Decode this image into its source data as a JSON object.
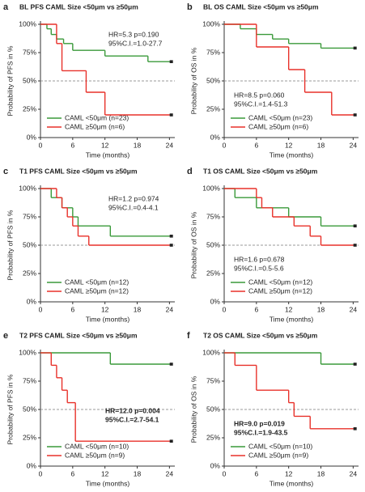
{
  "chart_data": [
    {
      "type": "step",
      "panel_label": "a",
      "title": "BL PFS CAML Size <50μm vs ≥50μm",
      "annotations": [
        "HR=5.3 p=0.190",
        "95%C.I.=1.0-27.7"
      ],
      "annotation_position": "upper right",
      "annotation_weight": "normal",
      "x_label": "Time (months)",
      "y_label": "Probability of PFS in %",
      "xlim": [
        0,
        25
      ],
      "ylim": [
        0,
        100
      ],
      "xticks": [
        0,
        6,
        12,
        18,
        24
      ],
      "yticks": [
        {
          "value": 0,
          "label": "0%"
        },
        {
          "value": 25,
          "label": "25%"
        },
        {
          "value": 50,
          "label": "50%"
        },
        {
          "value": 75,
          "label": "75%"
        },
        {
          "value": 100,
          "label": "100%"
        }
      ],
      "reference_line": 50,
      "legend": "lower left",
      "series": [
        {
          "name": "CAML <50μm (n=23)",
          "color": "#3a9a3a",
          "x": [
            0,
            1.2,
            2,
            3,
            4.3,
            6,
            12,
            20,
            24.5
          ],
          "values": [
            100,
            96,
            91,
            87,
            83,
            77,
            72,
            67,
            67
          ]
        },
        {
          "name": "CAML ≥50μm (n=6)",
          "color": "#e8312a",
          "x": [
            0,
            3,
            4,
            8.5,
            12,
            24.5
          ],
          "values": [
            100,
            83,
            59,
            40,
            20,
            20
          ]
        }
      ]
    },
    {
      "type": "step",
      "panel_label": "b",
      "title": "BL OS CAML Size <50μm vs ≥50μm",
      "annotations": [
        "HR=8.5 p=0.060",
        "95%C.I.=1.4-51.3"
      ],
      "annotation_position": "lower left",
      "annotation_weight": "normal",
      "x_label": "Time (months)",
      "y_label": "Probability of OS in %",
      "xlim": [
        0,
        25
      ],
      "ylim": [
        0,
        100
      ],
      "xticks": [
        0,
        6,
        12,
        18,
        24
      ],
      "yticks": [
        {
          "value": 0,
          "label": "0%"
        },
        {
          "value": 25,
          "label": "25%"
        },
        {
          "value": 50,
          "label": "50%"
        },
        {
          "value": 75,
          "label": "75%"
        },
        {
          "value": 100,
          "label": "100%"
        }
      ],
      "reference_line": 50,
      "legend": "lower left",
      "series": [
        {
          "name": "CAML <50μm (n=23)",
          "color": "#3a9a3a",
          "x": [
            0,
            3,
            6,
            9,
            12,
            18,
            24.5
          ],
          "values": [
            100,
            96,
            91,
            87,
            83,
            79,
            79
          ]
        },
        {
          "name": "CAML ≥50μm (n=6)",
          "color": "#e8312a",
          "x": [
            0,
            6,
            12,
            15,
            20,
            24.5
          ],
          "values": [
            100,
            80,
            60,
            40,
            20,
            20
          ]
        }
      ]
    },
    {
      "type": "step",
      "panel_label": "c",
      "title": "T1 PFS CAML Size <50μm vs ≥50μm",
      "annotations": [
        "HR=1.2 p=0.974",
        "95%C.I.=0.4-4.1"
      ],
      "annotation_position": "upper right",
      "annotation_weight": "normal",
      "x_label": "Time (months)",
      "y_label": "Probability of PFS in %",
      "xlim": [
        0,
        25
      ],
      "ylim": [
        0,
        100
      ],
      "xticks": [
        0,
        6,
        12,
        18,
        24
      ],
      "yticks": [
        {
          "value": 0,
          "label": "0%"
        },
        {
          "value": 25,
          "label": "25%"
        },
        {
          "value": 50,
          "label": "50%"
        },
        {
          "value": 75,
          "label": "75%"
        },
        {
          "value": 100,
          "label": "100%"
        }
      ],
      "reference_line": 50,
      "legend": "lower left",
      "series": [
        {
          "name": "CAML <50μm (n=12)",
          "color": "#3a9a3a",
          "x": [
            0,
            2,
            4,
            6,
            7,
            13,
            24.5
          ],
          "values": [
            100,
            92,
            83,
            75,
            67,
            58,
            58
          ]
        },
        {
          "name": "CAML ≥50μm (n=12)",
          "color": "#e8312a",
          "x": [
            0,
            3,
            4,
            5,
            6,
            7,
            9,
            24.5
          ],
          "values": [
            100,
            92,
            83,
            75,
            67,
            58,
            50,
            50
          ]
        }
      ]
    },
    {
      "type": "step",
      "panel_label": "d",
      "title": "T1 OS CAML Size <50μm vs ≥50μm",
      "annotations": [
        "HR=1.6 p=0.678",
        "95%C.I.=0.5-5.6"
      ],
      "annotation_position": "lower left",
      "annotation_weight": "normal",
      "x_label": "Time (months)",
      "y_label": "Probability of OS in %",
      "xlim": [
        0,
        25
      ],
      "ylim": [
        0,
        100
      ],
      "xticks": [
        0,
        6,
        12,
        18,
        24
      ],
      "yticks": [
        {
          "value": 0,
          "label": "0%"
        },
        {
          "value": 25,
          "label": "25%"
        },
        {
          "value": 50,
          "label": "50%"
        },
        {
          "value": 75,
          "label": "75%"
        },
        {
          "value": 100,
          "label": "100%"
        }
      ],
      "reference_line": 50,
      "legend": "lower left",
      "series": [
        {
          "name": "CAML <50μm (n=12)",
          "color": "#3a9a3a",
          "x": [
            0,
            2,
            6,
            12,
            18,
            24.5
          ],
          "values": [
            100,
            92,
            83,
            75,
            67,
            67
          ]
        },
        {
          "name": "CAML ≥50μm (n=12)",
          "color": "#e8312a",
          "x": [
            0,
            6,
            7,
            9,
            13,
            16,
            18,
            24.5
          ],
          "values": [
            100,
            92,
            83,
            75,
            67,
            58,
            50,
            50
          ]
        }
      ]
    },
    {
      "type": "step",
      "panel_label": "e",
      "title": "T2 PFS CAML Size <50μm vs ≥50μm",
      "annotations": [
        "HR=12.0 p=0.004",
        "95%C.I.=2.7-54.1"
      ],
      "annotation_position": "middle right",
      "annotation_weight": "bold",
      "x_label": "Time (months)",
      "y_label": "Probability of PFS in %",
      "xlim": [
        0,
        25
      ],
      "ylim": [
        0,
        100
      ],
      "xticks": [
        0,
        6,
        12,
        18,
        24
      ],
      "yticks": [
        {
          "value": 0,
          "label": "0%"
        },
        {
          "value": 25,
          "label": "25%"
        },
        {
          "value": 50,
          "label": "50%"
        },
        {
          "value": 75,
          "label": "75%"
        },
        {
          "value": 100,
          "label": "100%"
        }
      ],
      "reference_line": 50,
      "legend": "lower left",
      "series": [
        {
          "name": "CAML <50μm (n=10)",
          "color": "#3a9a3a",
          "x": [
            0,
            13,
            24.5
          ],
          "values": [
            100,
            90,
            90
          ]
        },
        {
          "name": "CAML ≥50μm (n=9)",
          "color": "#e8312a",
          "x": [
            0,
            2,
            3,
            4,
            5,
            6.5,
            24.5
          ],
          "values": [
            100,
            89,
            78,
            67,
            56,
            22,
            22
          ]
        }
      ]
    },
    {
      "type": "step",
      "panel_label": "f",
      "title": "T2 OS CAML Size <50μm vs ≥50μm",
      "annotations": [
        "HR=9.0 p=0.019",
        "95%C.I.=1.9-43.5"
      ],
      "annotation_position": "lower left",
      "annotation_weight": "bold",
      "x_label": "Time (months)",
      "y_label": "Probability of OS in %",
      "xlim": [
        0,
        25
      ],
      "ylim": [
        0,
        100
      ],
      "xticks": [
        0,
        6,
        12,
        18,
        24
      ],
      "yticks": [
        {
          "value": 0,
          "label": "0%"
        },
        {
          "value": 25,
          "label": "25%"
        },
        {
          "value": 50,
          "label": "50%"
        },
        {
          "value": 75,
          "label": "75%"
        },
        {
          "value": 100,
          "label": "100%"
        }
      ],
      "reference_line": 50,
      "legend": "lower left",
      "series": [
        {
          "name": "CAML <50μm (n=10)",
          "color": "#3a9a3a",
          "x": [
            0,
            18,
            24.5
          ],
          "values": [
            100,
            90,
            90
          ]
        },
        {
          "name": "CAML ≥50μm (n=9)",
          "color": "#e8312a",
          "x": [
            0,
            2,
            6,
            12,
            13,
            16,
            24.5
          ],
          "values": [
            100,
            89,
            67,
            56,
            44,
            33,
            33
          ]
        }
      ]
    }
  ]
}
